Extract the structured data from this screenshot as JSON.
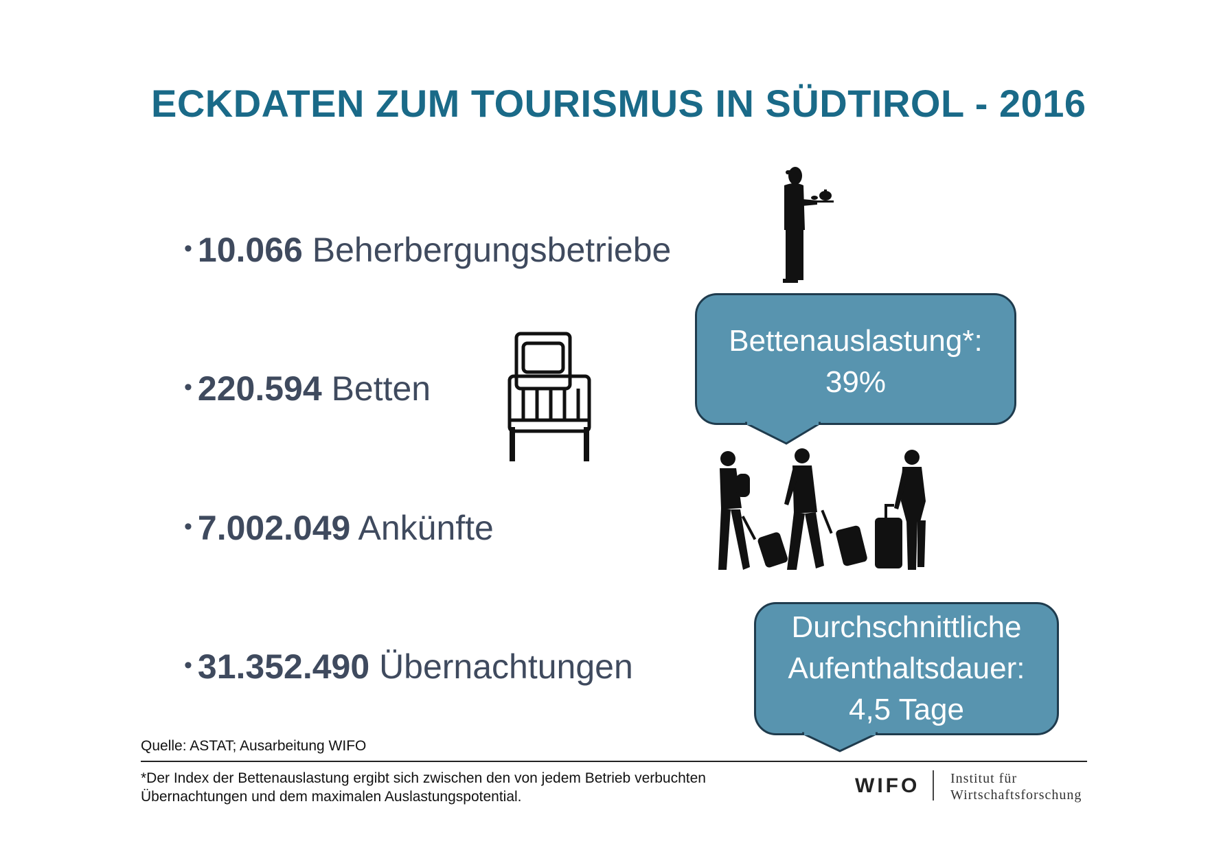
{
  "title": "ECKDATEN ZUM TOURISMUS IN SÜDTIROL - 2016",
  "stats": [
    {
      "bullet": "•",
      "value": "10.066",
      "label": "Beherbergungsbetriebe"
    },
    {
      "bullet": "•",
      "value": "220.594",
      "label": "Betten"
    },
    {
      "bullet": "•",
      "value": "7.002.049",
      "label": "Ankünfte"
    },
    {
      "bullet": "•",
      "value": "31.352.490",
      "label": "Übernachtungen"
    }
  ],
  "bubbles": {
    "occupancy": {
      "line1": "Bettenauslastung*:",
      "line2": "39%"
    },
    "stay": {
      "line1": "Durchschnittliche",
      "line2": "Aufenthaltsdauer:",
      "line3": "4,5 Tage"
    }
  },
  "source": "Quelle: ASTAT; Ausarbeitung WIFO",
  "footnote": "*Der Index der Bettenauslastung ergibt sich zwischen den von jedem Betrieb verbuchten Übernachtungen und dem maximalen Auslastungspotential.",
  "logo": {
    "wordmark": "WIFO",
    "line1": "Institut für",
    "line2": "Wirtschaftsforschung"
  },
  "colors": {
    "title": "#1a6a88",
    "text": "#3f4a5e",
    "bubble_fill": "#5894af",
    "bubble_border": "#1f3b4d"
  },
  "icons": [
    "waiter-icon",
    "bed-icon",
    "travelers-icon"
  ]
}
